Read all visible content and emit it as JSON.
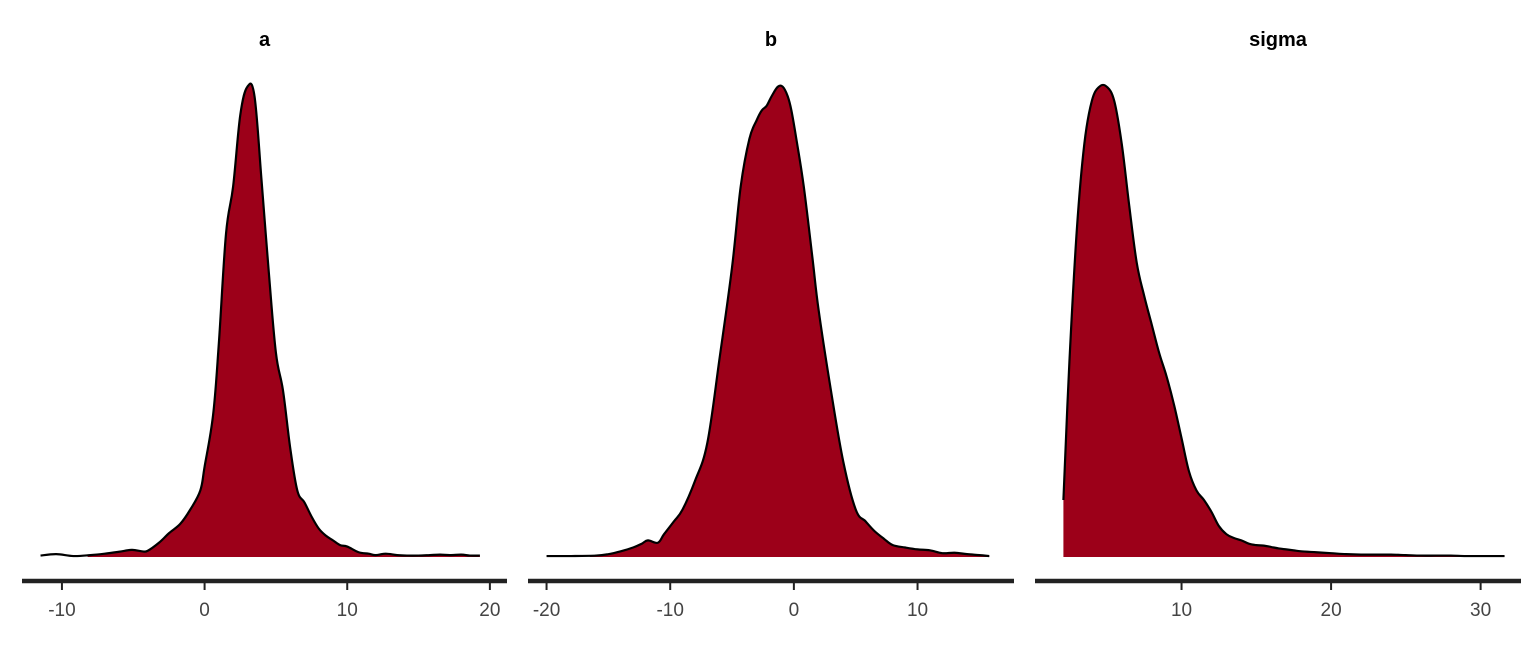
{
  "colors": {
    "fill": "#9c0019",
    "line": "#000000",
    "axis": "#222222",
    "tick_text": "#444444"
  },
  "chart_data": [
    {
      "type": "area",
      "title": "a",
      "xlabel": "",
      "ylabel": "",
      "xlim": [
        -12.8,
        21.2
      ],
      "ylim": [
        0,
        1
      ],
      "xticks": [
        -10,
        0,
        10,
        20
      ],
      "xtick_labels": [
        "-10",
        "0",
        "10",
        "20"
      ],
      "grid": false,
      "x": [
        -11.5,
        -10.4,
        -9.2,
        -8,
        -7,
        -6,
        -5.1,
        -4.4,
        -4,
        -3.2,
        -2.5,
        -1.7,
        -1,
        -0.3,
        0,
        0.6,
        1,
        1.5,
        2,
        2.5,
        3,
        3.5,
        4,
        4.5,
        5,
        5.5,
        6,
        6.5,
        7,
        7.5,
        8,
        8.5,
        9,
        9.5,
        10,
        10.8,
        11.5,
        12,
        12.7,
        13.5,
        14.2,
        15,
        15.8,
        16.5,
        17.2,
        18,
        18.6,
        19.3
      ],
      "y": [
        0.003,
        0.006,
        0.002,
        0.004,
        0.007,
        0.011,
        0.015,
        0.012,
        0.013,
        0.03,
        0.05,
        0.07,
        0.1,
        0.14,
        0.19,
        0.3,
        0.45,
        0.68,
        0.78,
        0.93,
        0.99,
        0.97,
        0.79,
        0.6,
        0.43,
        0.35,
        0.23,
        0.14,
        0.115,
        0.085,
        0.06,
        0.045,
        0.035,
        0.025,
        0.022,
        0.01,
        0.007,
        0.004,
        0.007,
        0.004,
        0.003,
        0.003,
        0.004,
        0.005,
        0.004,
        0.005,
        0.003,
        0.003
      ],
      "fill_from": -8.2
    },
    {
      "type": "area",
      "title": "b",
      "xlabel": "",
      "ylabel": "",
      "xlim": [
        -21.5,
        17.8
      ],
      "ylim": [
        0,
        1
      ],
      "xticks": [
        -20,
        -10,
        0,
        10
      ],
      "xtick_labels": [
        "-20",
        "-10",
        "0",
        "10"
      ],
      "grid": false,
      "x": [
        -20,
        -18,
        -16,
        -15,
        -14,
        -13,
        -12.3,
        -11.8,
        -11,
        -10.5,
        -9.7,
        -9,
        -8,
        -7,
        -6,
        -5,
        -4.3,
        -3.6,
        -3,
        -2.6,
        -2.2,
        -1.8,
        -1.3,
        -0.9,
        -0.5,
        -0.2,
        0.2,
        0.8,
        1.5,
        2,
        3,
        4,
        5,
        5.8,
        6.5,
        7.3,
        8,
        9,
        10,
        11,
        12,
        13,
        14,
        15,
        15.8
      ],
      "y": [
        0.002,
        0.002,
        0.003,
        0.006,
        0.012,
        0.02,
        0.028,
        0.035,
        0.03,
        0.048,
        0.075,
        0.1,
        0.16,
        0.24,
        0.42,
        0.61,
        0.78,
        0.88,
        0.92,
        0.94,
        0.95,
        0.97,
        0.99,
        0.99,
        0.97,
        0.94,
        0.88,
        0.78,
        0.63,
        0.52,
        0.35,
        0.2,
        0.1,
        0.075,
        0.055,
        0.038,
        0.025,
        0.02,
        0.016,
        0.014,
        0.008,
        0.009,
        0.006,
        0.004,
        0.002
      ],
      "fill_from": -16.5
    },
    {
      "type": "area",
      "title": "sigma",
      "xlabel": "",
      "ylabel": "",
      "xlim": [
        0.2,
        32.7
      ],
      "ylim": [
        0,
        1
      ],
      "xticks": [
        10,
        20,
        30
      ],
      "xtick_labels": [
        "10",
        "20",
        "30"
      ],
      "grid": false,
      "x": [
        2.1,
        2.5,
        3,
        3.5,
        4,
        4.5,
        5,
        5.5,
        6,
        6.5,
        7,
        7.5,
        8,
        8.5,
        9,
        9.5,
        10,
        10.5,
        11,
        11.5,
        12,
        12.5,
        13,
        13.5,
        14,
        14.5,
        15,
        15.5,
        16,
        16.5,
        17,
        17.5,
        18,
        19,
        20,
        21,
        22,
        23,
        24,
        25,
        26,
        27,
        28,
        29,
        30,
        31,
        31.6
      ],
      "y": [
        0.12,
        0.41,
        0.69,
        0.87,
        0.96,
        0.99,
        0.99,
        0.96,
        0.87,
        0.74,
        0.62,
        0.55,
        0.49,
        0.43,
        0.38,
        0.32,
        0.25,
        0.18,
        0.14,
        0.12,
        0.095,
        0.065,
        0.048,
        0.04,
        0.035,
        0.028,
        0.025,
        0.024,
        0.021,
        0.018,
        0.016,
        0.014,
        0.012,
        0.01,
        0.008,
        0.006,
        0.005,
        0.005,
        0.005,
        0.004,
        0.003,
        0.003,
        0.003,
        0.002,
        0.002,
        0.002,
        0.002
      ],
      "fill_from": 2.1
    }
  ]
}
